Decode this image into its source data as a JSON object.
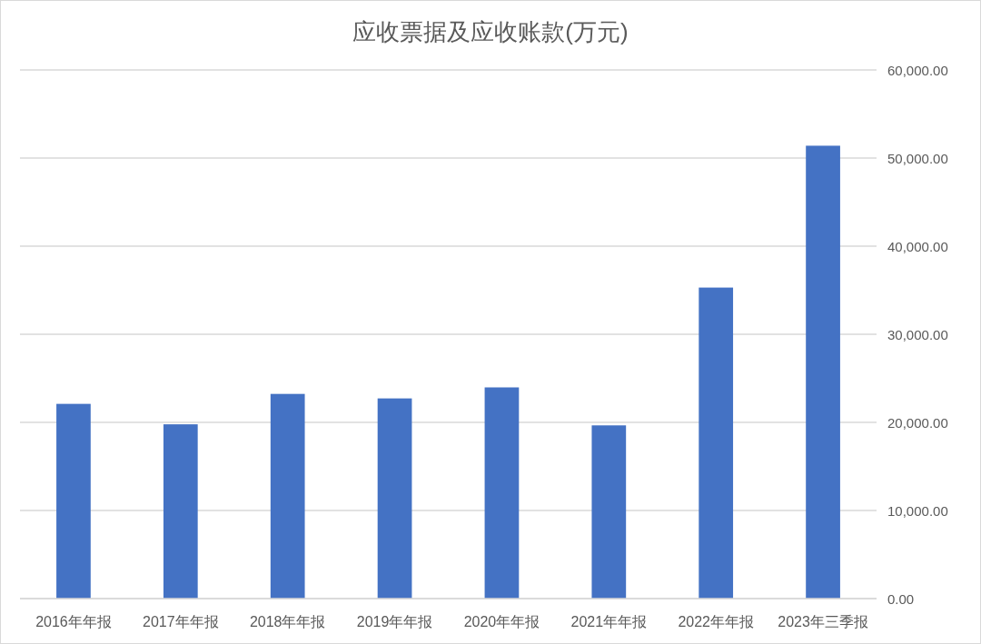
{
  "chart_data": {
    "type": "bar",
    "title": "应收票据及应收账款(万元)",
    "categories": [
      "2016年年报",
      "2017年年报",
      "2018年年报",
      "2019年年报",
      "2020年年报",
      "2021年年报",
      "2022年年报",
      "2023年三季报"
    ],
    "values": [
      22100,
      19780,
      23230,
      22720,
      23970,
      19660,
      35300,
      51400
    ],
    "color": "#4472c4",
    "ylim": [
      0,
      60000
    ],
    "yticks": [
      {
        "value": 0,
        "label": "0.00"
      },
      {
        "value": 10000,
        "label": "10,000.00"
      },
      {
        "value": 20000,
        "label": "20,000.00"
      },
      {
        "value": 30000,
        "label": "30,000.00"
      },
      {
        "value": 40000,
        "label": "40,000.00"
      },
      {
        "value": 50000,
        "label": "50,000.00"
      },
      {
        "value": 60000,
        "label": "60,000.00"
      }
    ],
    "grid": "y"
  }
}
